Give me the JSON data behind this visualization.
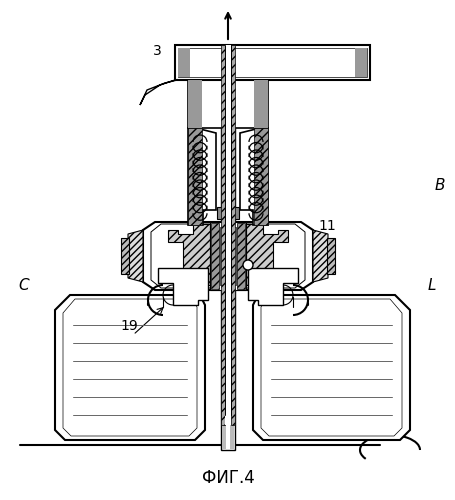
{
  "title": "ФИГ.4",
  "label_3": "3",
  "label_11": "11",
  "label_19": "19",
  "label_C": "C",
  "label_L": "L",
  "label_B": "B",
  "bg_color": "#ffffff",
  "line_color": "#000000",
  "figsize": [
    4.56,
    5.0
  ],
  "dpi": 100
}
